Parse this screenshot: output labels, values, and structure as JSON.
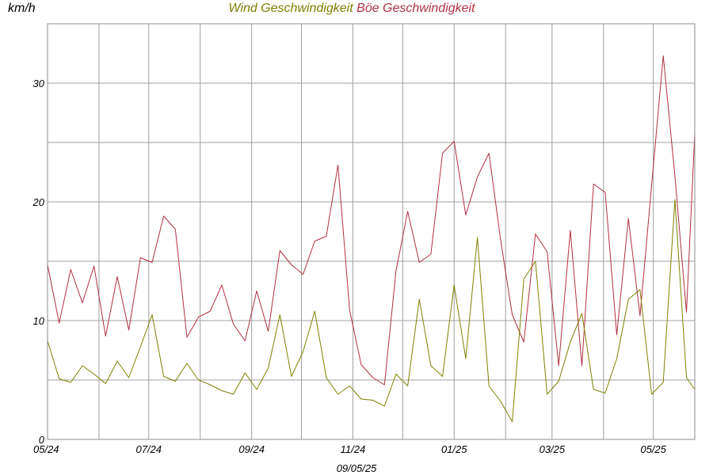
{
  "chart_data": {
    "type": "line",
    "title": {
      "part1": "Wind Geschwindigkeit",
      "part2": "Böe Geschwindigkeit"
    },
    "ylabel": "km/h",
    "xlabel": "09/05/25",
    "ylim": [
      0,
      35
    ],
    "y_ticks": [
      0,
      10,
      20,
      30
    ],
    "grid": true,
    "x_ticks": [
      "05/24",
      "07/24",
      "09/24",
      "11/24",
      "01/25",
      "03/25",
      "05/25"
    ],
    "x_range": [
      "2024-05-01",
      "2025-05-26"
    ],
    "colors": {
      "wind": "#808000",
      "gust": "#b03040",
      "grid": "#a0a0a0"
    },
    "series": [
      {
        "key": "wind",
        "name": "Wind Geschwindigkeit",
        "x": [
          "2024-05-01",
          "2024-05-08",
          "2024-05-15",
          "2024-05-22",
          "2024-05-29",
          "2024-06-05",
          "2024-06-12",
          "2024-06-19",
          "2024-06-26",
          "2024-07-03",
          "2024-07-10",
          "2024-07-17",
          "2024-07-24",
          "2024-07-31",
          "2024-08-07",
          "2024-08-14",
          "2024-08-21",
          "2024-08-28",
          "2024-09-04",
          "2024-09-11",
          "2024-09-18",
          "2024-09-25",
          "2024-10-02",
          "2024-10-09",
          "2024-10-16",
          "2024-10-23",
          "2024-10-30",
          "2024-11-06",
          "2024-11-13",
          "2024-11-20",
          "2024-11-27",
          "2024-12-04",
          "2024-12-11",
          "2024-12-18",
          "2024-12-25",
          "2025-01-01",
          "2025-01-08",
          "2025-01-15",
          "2025-01-22",
          "2025-01-29",
          "2025-02-05",
          "2025-02-12",
          "2025-02-19",
          "2025-02-26",
          "2025-03-05",
          "2025-03-12",
          "2025-03-19",
          "2025-03-26",
          "2025-04-02",
          "2025-04-09",
          "2025-04-16",
          "2025-04-23",
          "2025-04-30",
          "2025-05-07",
          "2025-05-14",
          "2025-05-21",
          "2025-05-26"
        ],
        "values": [
          8.3,
          5.1,
          4.8,
          6.2,
          5.5,
          4.7,
          6.6,
          5.2,
          7.8,
          10.5,
          5.3,
          4.9,
          6.4,
          5.0,
          4.6,
          4.1,
          3.8,
          5.6,
          4.2,
          6.0,
          10.5,
          5.3,
          7.4,
          10.8,
          5.2,
          3.8,
          4.5,
          3.4,
          3.3,
          2.8,
          5.5,
          4.5,
          11.8,
          6.2,
          5.3,
          13.0,
          6.8,
          17.0,
          4.5,
          3.2,
          1.5,
          13.5,
          15.0,
          3.8,
          4.9,
          8.2,
          10.6,
          4.2,
          3.9,
          6.8,
          11.8,
          12.6,
          3.8,
          4.8,
          20.2,
          5.2,
          4.2
        ]
      },
      {
        "key": "gust",
        "name": "Böe Geschwindigkeit",
        "x": [
          "2024-05-01",
          "2024-05-08",
          "2024-05-15",
          "2024-05-22",
          "2024-05-29",
          "2024-06-05",
          "2024-06-12",
          "2024-06-19",
          "2024-06-26",
          "2024-07-03",
          "2024-07-10",
          "2024-07-17",
          "2024-07-24",
          "2024-07-31",
          "2024-08-07",
          "2024-08-14",
          "2024-08-21",
          "2024-08-28",
          "2024-09-04",
          "2024-09-11",
          "2024-09-18",
          "2024-09-25",
          "2024-10-02",
          "2024-10-09",
          "2024-10-16",
          "2024-10-23",
          "2024-10-30",
          "2024-11-06",
          "2024-11-13",
          "2024-11-20",
          "2024-11-27",
          "2024-12-04",
          "2024-12-11",
          "2024-12-18",
          "2024-12-25",
          "2025-01-01",
          "2025-01-08",
          "2025-01-15",
          "2025-01-22",
          "2025-01-29",
          "2025-02-05",
          "2025-02-12",
          "2025-02-19",
          "2025-02-26",
          "2025-03-05",
          "2025-03-12",
          "2025-03-19",
          "2025-03-26",
          "2025-04-02",
          "2025-04-09",
          "2025-04-16",
          "2025-04-23",
          "2025-04-30",
          "2025-05-07",
          "2025-05-14",
          "2025-05-21",
          "2025-05-26"
        ],
        "values": [
          14.7,
          9.8,
          14.3,
          11.5,
          14.6,
          8.7,
          13.7,
          9.2,
          15.3,
          14.9,
          18.8,
          17.7,
          8.6,
          10.3,
          10.8,
          13.0,
          9.7,
          8.3,
          12.5,
          9.1,
          15.9,
          14.7,
          13.9,
          16.7,
          17.1,
          23.1,
          10.9,
          6.3,
          5.2,
          4.6,
          14.2,
          19.2,
          14.9,
          15.6,
          24.1,
          25.1,
          18.9,
          22.1,
          24.1,
          16.8,
          10.5,
          8.2,
          17.3,
          15.8,
          6.2,
          17.6,
          6.2,
          21.5,
          20.8,
          8.8,
          18.6,
          10.4,
          21.4,
          32.3,
          22.2,
          10.7,
          25.8
        ]
      }
    ]
  }
}
